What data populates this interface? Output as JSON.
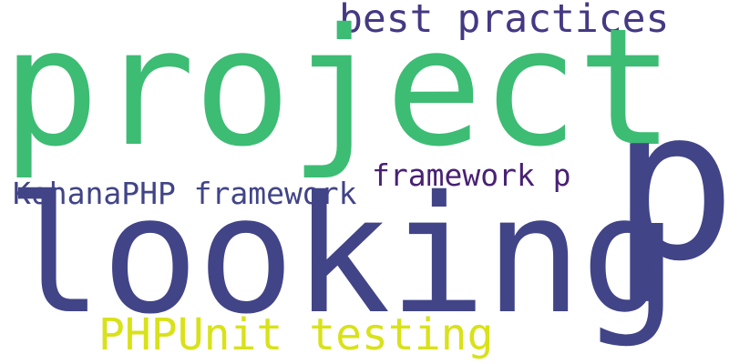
{
  "wordcloud": {
    "words": [
      {
        "text": "best practices",
        "color": "#443983"
      },
      {
        "text": "project",
        "color": "#3dbc74"
      },
      {
        "text": "p",
        "color": "#414487"
      },
      {
        "text": "framework p",
        "color": "#482173"
      },
      {
        "text": "KohanaPHP framework",
        "color": "#414487"
      },
      {
        "text": "looking",
        "color": "#414487"
      },
      {
        "text": "PHPUnit testing",
        "color": "#d8e219"
      }
    ]
  }
}
